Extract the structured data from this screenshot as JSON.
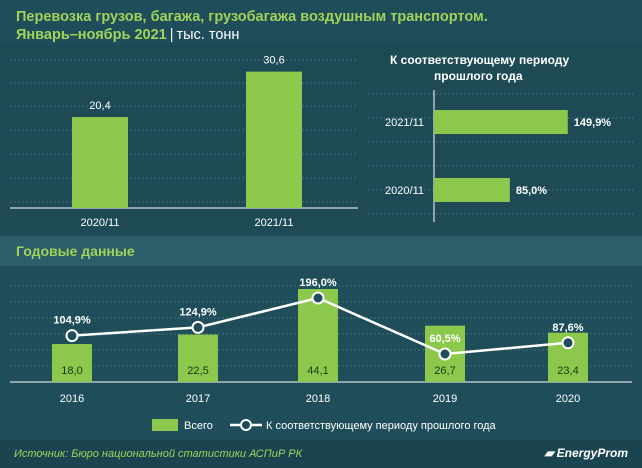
{
  "header": {
    "title_line1": "Перевозка грузов, багажа, грузобагажа воздушным транспортом.",
    "title_line2": "Январь–ноябрь 2021",
    "separator": "|",
    "unit": "тыс. тонн"
  },
  "annual_section_title": "Годовые данные",
  "rel_chart_title_line1": "К соответствующему периоду",
  "rel_chart_title_line2": "прошлого года",
  "legend": {
    "total": "Всего",
    "relative": "К соответствующему периоду прошлого года"
  },
  "footer": {
    "source": "Источник: Бюро национальной статистики АСПиР РК",
    "logo": "EnergyProm"
  },
  "colors": {
    "background": "#1f4e5a",
    "bar": "#8cc84b",
    "accent_text": "#9fd35a",
    "line": "#ffffff"
  },
  "chart_data": [
    {
      "type": "bar",
      "categories": [
        "2020/11",
        "2021/11"
      ],
      "values": [
        20.4,
        30.6
      ],
      "labels": [
        "20,4",
        "30,6"
      ],
      "ylim": [
        0,
        35
      ],
      "grid": true
    },
    {
      "type": "bar",
      "orientation": "horizontal",
      "categories": [
        "2021/11",
        "2020/11"
      ],
      "values": [
        149.9,
        85.0
      ],
      "labels": [
        "149,9%",
        "85,0%"
      ],
      "xlim": [
        0,
        160
      ],
      "grid": true
    },
    {
      "type": "bar",
      "categories": [
        "2016",
        "2017",
        "2018",
        "2019",
        "2020"
      ],
      "series": [
        {
          "name": "Всего",
          "values": [
            18.0,
            22.5,
            44.1,
            26.7,
            23.4
          ],
          "labels": [
            "18,0",
            "22,5",
            "44,1",
            "26,7",
            "23,4"
          ]
        },
        {
          "name": "К соответствующему периоду прошлого года",
          "type": "line",
          "values": [
            104.9,
            124.9,
            196.0,
            60.5,
            87.6
          ],
          "labels": [
            "104,9%",
            "124,9%",
            "196,0%",
            "60,5%",
            "87,6%"
          ]
        }
      ],
      "legend_position": "bottom",
      "grid": true
    }
  ]
}
